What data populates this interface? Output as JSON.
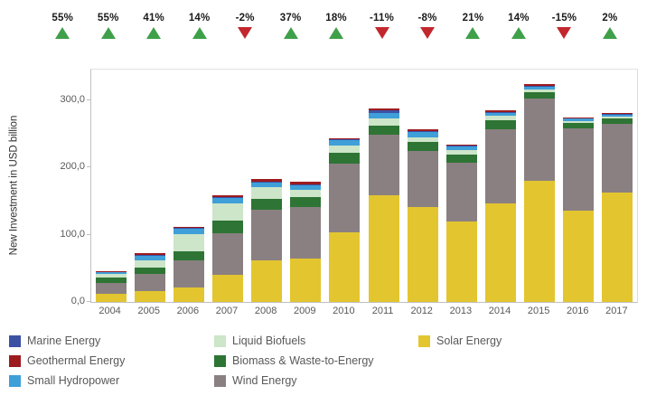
{
  "colors": {
    "increase": "#3fa049",
    "decrease": "#c2272d",
    "axis_text": "#595959",
    "axis_line": "#bfbfbf"
  },
  "percent_row": {
    "values": [
      "55%",
      "55%",
      "41%",
      "14%",
      "-2%",
      "37%",
      "18%",
      "-11%",
      "-8%",
      "21%",
      "14%",
      "-15%",
      "2%"
    ]
  },
  "y_axis": {
    "title": "New Investment in USD billion",
    "tick_labels": [
      "0,0",
      "100,0",
      "200,0",
      "300,0"
    ],
    "tick_values": [
      0,
      100,
      200,
      300
    ]
  },
  "chart_data": {
    "type": "bar",
    "stacked": true,
    "title": "",
    "xlabel": "",
    "ylabel": "New Investment in USD billion",
    "ylim": [
      0,
      345
    ],
    "grid": false,
    "legend_position": "bottom",
    "categories": [
      "2004",
      "2005",
      "2006",
      "2007",
      "2008",
      "2009",
      "2010",
      "2011",
      "2012",
      "2013",
      "2014",
      "2015",
      "2016",
      "2017"
    ],
    "series": [
      {
        "name": "Solar Energy",
        "color": "#e3c530",
        "values": [
          12,
          16,
          22,
          40,
          62,
          64,
          104,
          159,
          141,
          120,
          147,
          180,
          136,
          162
        ]
      },
      {
        "name": "Wind Energy",
        "color": "#8a8081",
        "values": [
          16,
          25,
          40,
          62,
          75,
          77,
          101,
          89,
          83,
          87,
          110,
          122,
          122,
          103
        ]
      },
      {
        "name": "Biomass & Waste-to-Energy",
        "color": "#2e7434",
        "values": [
          8.5,
          10,
          13,
          19,
          16,
          15,
          17,
          14,
          13,
          12,
          13,
          10,
          8,
          8
        ]
      },
      {
        "name": "Liquid Biofuels",
        "color": "#cde5c8",
        "values": [
          4.5,
          11,
          26,
          26,
          18,
          10,
          10,
          10,
          8,
          6,
          6,
          4,
          2.5,
          2.5
        ]
      },
      {
        "name": "Small Hydropower",
        "color": "#3f9fd8",
        "values": [
          3,
          7,
          8,
          7,
          6,
          7,
          8,
          8,
          7,
          6,
          4,
          4,
          3.5,
          3
        ]
      },
      {
        "name": "Marine Energy",
        "color": "#3c51a3",
        "values": [
          1,
          1.5,
          1.5,
          2,
          2,
          2,
          1.5,
          4,
          2,
          1.5,
          2,
          1.5,
          1,
          0.8
        ]
      },
      {
        "name": "Geothermal Energy",
        "color": "#9c1b1f",
        "values": [
          1,
          1.5,
          1.5,
          3,
          3,
          3,
          1.5,
          4,
          2,
          1.5,
          2,
          1.5,
          1,
          0.7
        ]
      }
    ],
    "year_over_year_change_pct": [
      55,
      55,
      41,
      14,
      -2,
      37,
      18,
      -11,
      -8,
      21,
      14,
      -15,
      2
    ]
  },
  "legend": {
    "columns": [
      [
        {
          "label": "Marine Energy",
          "color": "#3c51a3"
        },
        {
          "label": "Geothermal Energy",
          "color": "#9c1b1f"
        },
        {
          "label": "Small Hydropower",
          "color": "#3f9fd8"
        }
      ],
      [
        {
          "label": "Liquid Biofuels",
          "color": "#cde5c8"
        },
        {
          "label": "Biomass & Waste-to-Energy",
          "color": "#2e7434"
        },
        {
          "label": "Wind Energy",
          "color": "#8a8081"
        }
      ],
      [
        {
          "label": "Solar Energy",
          "color": "#e3c530"
        }
      ]
    ]
  }
}
